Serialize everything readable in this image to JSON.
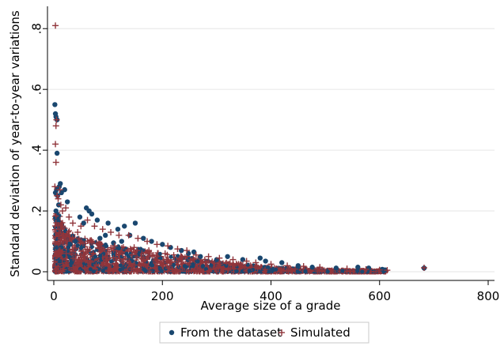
{
  "chart_data": {
    "type": "scatter",
    "xlabel": "Average size of a grade",
    "ylabel": "Standard deviation of year-to-year variations",
    "xlim": [
      0,
      800
    ],
    "ylim": [
      0,
      0.85
    ],
    "x_ticks": [
      0,
      200,
      400,
      600,
      800
    ],
    "x_tick_labels": [
      "0",
      "200",
      "400",
      "600",
      "800"
    ],
    "y_ticks": [
      0,
      0.2,
      0.4,
      0.6,
      0.8
    ],
    "y_tick_labels": [
      "0",
      ".2",
      ".4",
      ".6",
      ".8"
    ],
    "grid": "horizontal",
    "legend": {
      "position": "bottom",
      "boxed": true
    },
    "series": [
      {
        "name": "From the dataset",
        "marker": "circle",
        "color": "#1a476f",
        "points": [
          [
            2,
            0.55
          ],
          [
            3,
            0.52
          ],
          [
            4,
            0.51
          ],
          [
            6,
            0.5
          ],
          [
            6,
            0.39
          ],
          [
            3,
            0.26
          ],
          [
            5,
            0.27
          ],
          [
            7,
            0.25
          ],
          [
            10,
            0.28
          ],
          [
            12,
            0.29
          ],
          [
            4,
            0.2
          ],
          [
            9,
            0.22
          ],
          [
            14,
            0.26
          ],
          [
            20,
            0.27
          ],
          [
            25,
            0.23
          ],
          [
            60,
            0.21
          ],
          [
            65,
            0.2
          ],
          [
            70,
            0.19
          ],
          [
            48,
            0.18
          ],
          [
            55,
            0.16
          ],
          [
            80,
            0.17
          ],
          [
            100,
            0.16
          ],
          [
            118,
            0.14
          ],
          [
            130,
            0.15
          ],
          [
            150,
            0.16
          ],
          [
            95,
            0.12
          ],
          [
            140,
            0.12
          ],
          [
            165,
            0.11
          ],
          [
            180,
            0.1
          ],
          [
            200,
            0.09
          ],
          [
            215,
            0.08
          ],
          [
            235,
            0.07
          ],
          [
            248,
            0.06
          ],
          [
            258,
            0.065
          ],
          [
            270,
            0.05
          ],
          [
            300,
            0.04
          ],
          [
            320,
            0.05
          ],
          [
            348,
            0.04
          ],
          [
            380,
            0.045
          ],
          [
            390,
            0.035
          ],
          [
            420,
            0.03
          ],
          [
            450,
            0.02
          ],
          [
            476,
            0.015
          ],
          [
            520,
            0.012
          ],
          [
            560,
            0.015
          ],
          [
            580,
            0.012
          ],
          [
            605,
            0.008
          ],
          [
            610,
            0.006
          ],
          [
            682,
            0.012
          ],
          [
            30,
            0.09
          ],
          [
            40,
            0.1
          ],
          [
            85,
            0.11
          ],
          [
            110,
            0.095
          ],
          [
            125,
            0.1
          ]
        ]
      },
      {
        "name": "Simulated",
        "marker": "plus",
        "color": "#90353b",
        "points": [
          [
            3,
            0.81
          ],
          [
            4,
            0.48
          ],
          [
            3,
            0.42
          ],
          [
            5,
            0.5
          ],
          [
            4,
            0.36
          ],
          [
            2,
            0.28
          ],
          [
            6,
            0.25
          ],
          [
            8,
            0.24
          ],
          [
            11,
            0.27
          ],
          [
            13,
            0.22
          ],
          [
            16,
            0.2
          ],
          [
            22,
            0.21
          ],
          [
            28,
            0.18
          ],
          [
            35,
            0.16
          ],
          [
            50,
            0.15
          ],
          [
            62,
            0.17
          ],
          [
            75,
            0.15
          ],
          [
            90,
            0.14
          ],
          [
            105,
            0.13
          ],
          [
            120,
            0.12
          ],
          [
            138,
            0.12
          ],
          [
            155,
            0.11
          ],
          [
            172,
            0.1
          ],
          [
            190,
            0.09
          ],
          [
            210,
            0.085
          ],
          [
            228,
            0.075
          ],
          [
            245,
            0.07
          ],
          [
            262,
            0.055
          ],
          [
            285,
            0.05
          ],
          [
            305,
            0.045
          ],
          [
            330,
            0.04
          ],
          [
            355,
            0.035
          ],
          [
            372,
            0.03
          ],
          [
            400,
            0.025
          ],
          [
            430,
            0.02
          ],
          [
            460,
            0.018
          ],
          [
            490,
            0.015
          ],
          [
            540,
            0.01
          ],
          [
            575,
            0.008
          ],
          [
            600,
            0.006
          ],
          [
            614,
            0.005
          ],
          [
            682,
            0.013
          ],
          [
            12,
            0.14
          ],
          [
            18,
            0.12
          ],
          [
            44,
            0.13
          ],
          [
            70,
            0.1
          ],
          [
            86,
            0.09
          ],
          [
            112,
            0.085
          ],
          [
            148,
            0.08
          ],
          [
            175,
            0.07
          ],
          [
            205,
            0.06
          ]
        ]
      }
    ],
    "density_cloud": {
      "note_series": "Simulated",
      "upper_envelope": [
        [
          10,
          0.2
        ],
        [
          20,
          0.15
        ],
        [
          40,
          0.12
        ],
        [
          60,
          0.11
        ],
        [
          80,
          0.1
        ],
        [
          100,
          0.09
        ],
        [
          150,
          0.08
        ],
        [
          200,
          0.06
        ],
        [
          250,
          0.05
        ],
        [
          300,
          0.035
        ],
        [
          350,
          0.025
        ],
        [
          400,
          0.015
        ],
        [
          450,
          0.01
        ],
        [
          500,
          0.006
        ],
        [
          560,
          0.004
        ],
        [
          600,
          0.003
        ]
      ]
    }
  }
}
